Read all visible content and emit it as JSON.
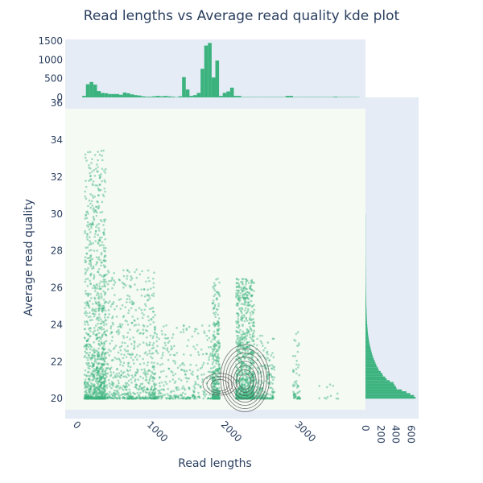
{
  "chart_data": {
    "type": "scatter",
    "title": "Read lengths vs Average read quality kde plot",
    "xlabel": "Read lengths",
    "ylabel": "Average read quality",
    "xlim": [
      -130,
      3930
    ],
    "ylim": [
      19.4,
      35.7
    ],
    "x_ticks": [
      0,
      1000,
      2000,
      3000
    ],
    "y_ticks": [
      20,
      22,
      24,
      26,
      28,
      30,
      32,
      34,
      36
    ],
    "colors": {
      "marker": "#3cb37f",
      "histogram": "#3cb37f",
      "main_background": "#f5faf3",
      "marginal_background": "#e5ecf6",
      "kde_contour": "#555555",
      "text": "#2a3f5f"
    },
    "marginal_top": {
      "type": "histogram",
      "variable": "Read lengths",
      "ylim": [
        0,
        1500
      ],
      "y_ticks": [
        0,
        500,
        1000,
        1500
      ],
      "bin_width": 50,
      "bin_start": 100,
      "counts": [
        40,
        350,
        410,
        340,
        170,
        120,
        110,
        90,
        90,
        90,
        70,
        130,
        110,
        80,
        60,
        50,
        30,
        20,
        20,
        30,
        40,
        30,
        40,
        30,
        20,
        10,
        30,
        540,
        210,
        40,
        60,
        120,
        760,
        1380,
        1450,
        530,
        980,
        40,
        120,
        160,
        260,
        40,
        40,
        10,
        10,
        10,
        10,
        10,
        10,
        10,
        10,
        10,
        10,
        10,
        10,
        40,
        40,
        10,
        10,
        10,
        10,
        10,
        10,
        10,
        10,
        10,
        10,
        10,
        20,
        10,
        10,
        10,
        10,
        10,
        10
      ]
    },
    "marginal_right": {
      "type": "histogram",
      "variable": "Average read quality",
      "xlim": [
        0,
        700
      ],
      "x_ticks": [
        0,
        200,
        400,
        600
      ],
      "bin_width": 0.1,
      "bin_start": 20,
      "counts": [
        660,
        640,
        590,
        540,
        480,
        410,
        400,
        380,
        370,
        320,
        280,
        260,
        230,
        220,
        200,
        175,
        165,
        150,
        140,
        130,
        120,
        110,
        100,
        92,
        85,
        78,
        72,
        66,
        60,
        55,
        50,
        46,
        42,
        38,
        35,
        32,
        30,
        28,
        26,
        24,
        22,
        20,
        19,
        18,
        17,
        16,
        15,
        14,
        13,
        12,
        11,
        10,
        10,
        9,
        9,
        8,
        8,
        7,
        7,
        6,
        6,
        6,
        5,
        5,
        5,
        5,
        4,
        4,
        4,
        4,
        4,
        3,
        3,
        3,
        3,
        3,
        3,
        3,
        2,
        2,
        2,
        2,
        2,
        2,
        2,
        2,
        2,
        2,
        2,
        2,
        2,
        2,
        2,
        2,
        2,
        2,
        2,
        2,
        2,
        2
      ]
    },
    "scatter": {
      "clusters": [
        {
          "x": [
            130,
            420
          ],
          "y": [
            20.0,
            33.5
          ],
          "n": 900
        },
        {
          "x": [
            300,
            1100
          ],
          "y": [
            20.0,
            27.0
          ],
          "n": 700
        },
        {
          "x": [
            1000,
            1900
          ],
          "y": [
            20.0,
            24.0
          ],
          "n": 350
        },
        {
          "x": [
            1860,
            1960
          ],
          "y": [
            20.0,
            26.5
          ],
          "n": 320
        },
        {
          "x": [
            2180,
            2430
          ],
          "y": [
            20.0,
            26.5
          ],
          "n": 900
        },
        {
          "x": [
            2450,
            2700
          ],
          "y": [
            20.0,
            23.5
          ],
          "n": 180
        },
        {
          "x": [
            2950,
            3050
          ],
          "y": [
            20.0,
            23.7
          ],
          "n": 60
        },
        {
          "x": [
            3300,
            3600
          ],
          "y": [
            20.0,
            21.2
          ],
          "n": 12
        }
      ]
    },
    "kde": {
      "centers": [
        {
          "x": 2300,
          "y": 20.9
        },
        {
          "x": 1960,
          "y": 20.7
        }
      ]
    }
  }
}
